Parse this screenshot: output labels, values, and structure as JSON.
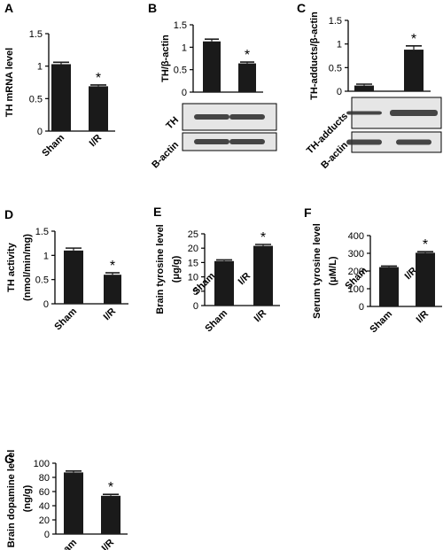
{
  "chart_data": [
    {
      "panel": "A",
      "type": "bar",
      "ylabel": "TH mRNA level",
      "categories": [
        "Sham",
        "I/R"
      ],
      "values": [
        1.03,
        0.69
      ],
      "errors": [
        0.03,
        0.02
      ],
      "ylim": [
        0,
        1.5
      ],
      "ticks": [
        "0",
        "0.5",
        "1",
        "1.5"
      ],
      "significance": [
        "",
        "*"
      ]
    },
    {
      "panel": "B",
      "type": "bar",
      "ylabel": "TH/β-actin",
      "categories": [
        "Sham",
        "I/R"
      ],
      "values": [
        1.13,
        0.64
      ],
      "errors": [
        0.05,
        0.03
      ],
      "ylim": [
        0,
        1.5
      ],
      "ticks": [
        "0",
        "0.5",
        "1",
        "1.5"
      ],
      "significance": [
        "",
        "*"
      ],
      "blots": [
        "TH",
        "B-actin"
      ]
    },
    {
      "panel": "C",
      "type": "bar",
      "ylabel": "TH-adducts/β-actin",
      "categories": [
        "Sham",
        "I/R"
      ],
      "values": [
        0.12,
        0.88
      ],
      "errors": [
        0.03,
        0.08
      ],
      "ylim": [
        0,
        1.5
      ],
      "ticks": [
        "0",
        "0.5",
        "1",
        "1.5"
      ],
      "significance": [
        "",
        "*"
      ],
      "blots": [
        "TH-adducts",
        "B-actin"
      ]
    },
    {
      "panel": "D",
      "type": "bar",
      "ylabel": [
        "TH  activity",
        "(nmol/min/mg)"
      ],
      "categories": [
        "Sham",
        "I/R"
      ],
      "values": [
        1.1,
        0.6
      ],
      "errors": [
        0.05,
        0.04
      ],
      "ylim": [
        0,
        1.5
      ],
      "ticks": [
        "0",
        "0.5",
        "1",
        "1.5"
      ],
      "significance": [
        "",
        "*"
      ]
    },
    {
      "panel": "E",
      "type": "bar",
      "ylabel": [
        "Brain tyrosine level",
        "(μg/g)"
      ],
      "categories": [
        "Sham",
        "I/R"
      ],
      "values": [
        15.5,
        20.8
      ],
      "errors": [
        0.4,
        0.5
      ],
      "ylim": [
        0,
        25
      ],
      "ticks": [
        "0",
        "5",
        "10",
        "15",
        "20",
        "25"
      ],
      "significance": [
        "",
        "*"
      ]
    },
    {
      "panel": "F",
      "type": "bar",
      "ylabel": [
        "Serum tyrosine level",
        "(μM/L)"
      ],
      "categories": [
        "Sham",
        "I/R"
      ],
      "values": [
        222,
        303
      ],
      "errors": [
        6,
        6
      ],
      "ylim": [
        0,
        400
      ],
      "ticks": [
        "0",
        "100",
        "200",
        "300",
        "400"
      ],
      "significance": [
        "",
        "*"
      ]
    },
    {
      "panel": "G",
      "type": "bar",
      "ylabel": [
        "Brain dopamine level",
        "(ng/g)"
      ],
      "categories": [
        "Sham",
        "I/R"
      ],
      "values": [
        87,
        54
      ],
      "errors": [
        2,
        2
      ],
      "ylim": [
        0,
        100
      ],
      "ticks": [
        "0",
        "20",
        "40",
        "60",
        "80",
        "100"
      ],
      "significance": [
        "",
        "*"
      ]
    }
  ],
  "colors": {
    "bar": "#1a1a1a",
    "axis": "#000000",
    "blot_bg": "#e6e6e6",
    "band": "#333333"
  }
}
